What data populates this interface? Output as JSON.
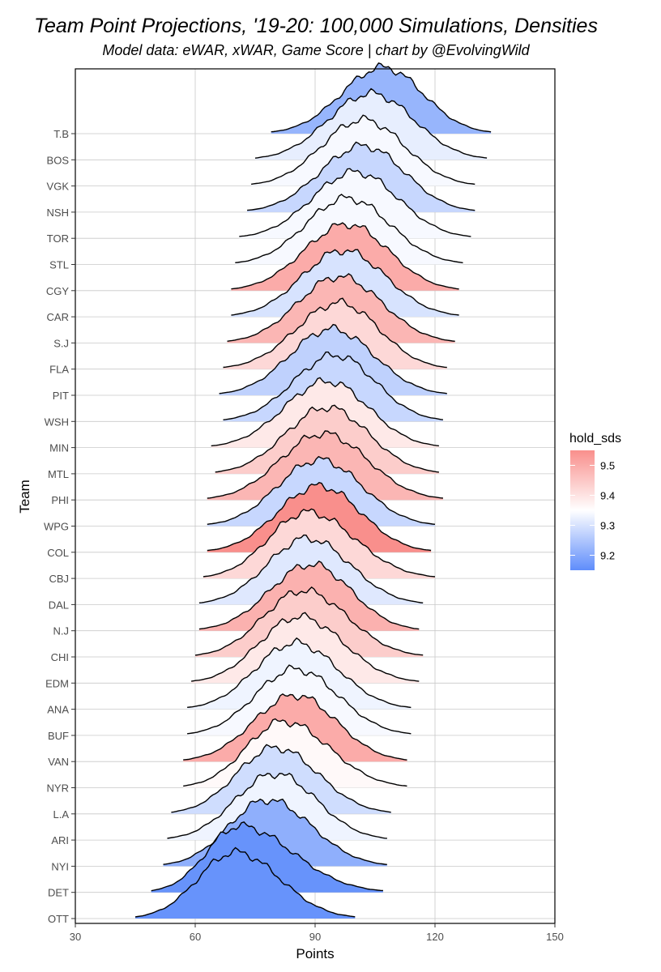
{
  "chart_data": {
    "type": "ridgeline-density",
    "title": "Team Point Projections, '19-20: 100,000 Simulations, Densities",
    "subtitle": "Model data: eWAR, xWAR, Game Score | chart by @EvolvingWild",
    "xlabel": "Points",
    "ylabel": "Team",
    "xlim": [
      30,
      150
    ],
    "xticks": [
      30,
      60,
      90,
      120,
      150
    ],
    "grid": true,
    "legend": {
      "title": "hold_sds",
      "placement": "right",
      "range": [
        9.15,
        9.55
      ],
      "ticks": [
        9.5,
        9.4,
        9.3,
        9.2
      ],
      "colors": {
        "low": "#5f8dfb",
        "mid": "#ffffff",
        "high": "#f98f8c"
      },
      "midpoint": 9.35
    },
    "series": [
      {
        "team": "T.B",
        "peak": 107,
        "min": 79,
        "max": 134,
        "hold_sds": 9.22
      },
      {
        "team": "BOS",
        "peak": 104,
        "min": 75,
        "max": 133,
        "hold_sds": 9.32
      },
      {
        "team": "VGK",
        "peak": 102,
        "min": 74,
        "max": 130,
        "hold_sds": 9.34
      },
      {
        "team": "NSH",
        "peak": 102,
        "min": 73,
        "max": 130,
        "hold_sds": 9.28
      },
      {
        "team": "TOR",
        "peak": 100,
        "min": 71,
        "max": 129,
        "hold_sds": 9.34
      },
      {
        "team": "STL",
        "peak": 98,
        "min": 70,
        "max": 127,
        "hold_sds": 9.34
      },
      {
        "team": "CGY",
        "peak": 98,
        "min": 69,
        "max": 126,
        "hold_sds": 9.5
      },
      {
        "team": "CAR",
        "peak": 97,
        "min": 69,
        "max": 126,
        "hold_sds": 9.3
      },
      {
        "team": "S.J",
        "peak": 96,
        "min": 68,
        "max": 125,
        "hold_sds": 9.48
      },
      {
        "team": "FLA",
        "peak": 96,
        "min": 67,
        "max": 123,
        "hold_sds": 9.42
      },
      {
        "team": "PIT",
        "peak": 94,
        "min": 66,
        "max": 123,
        "hold_sds": 9.27
      },
      {
        "team": "WSH",
        "peak": 95,
        "min": 67,
        "max": 122,
        "hold_sds": 9.28
      },
      {
        "team": "MIN",
        "peak": 93,
        "min": 64,
        "max": 121,
        "hold_sds": 9.39
      },
      {
        "team": "MTL",
        "peak": 93,
        "min": 65,
        "max": 121,
        "hold_sds": 9.44
      },
      {
        "team": "PHI",
        "peak": 92,
        "min": 63,
        "max": 122,
        "hold_sds": 9.48
      },
      {
        "team": "WPG",
        "peak": 91,
        "min": 63,
        "max": 120,
        "hold_sds": 9.28
      },
      {
        "team": "COL",
        "peak": 91,
        "min": 63,
        "max": 119,
        "hold_sds": 9.55
      },
      {
        "team": "CBJ",
        "peak": 88,
        "min": 62,
        "max": 120,
        "hold_sds": 9.42
      },
      {
        "team": "DAL",
        "peak": 88,
        "min": 61,
        "max": 117,
        "hold_sds": 9.31
      },
      {
        "team": "N.J",
        "peak": 89,
        "min": 61,
        "max": 116,
        "hold_sds": 9.49
      },
      {
        "team": "CHI",
        "peak": 87,
        "min": 60,
        "max": 117,
        "hold_sds": 9.44
      },
      {
        "team": "EDM",
        "peak": 86,
        "min": 59,
        "max": 116,
        "hold_sds": 9.39
      },
      {
        "team": "ANA",
        "peak": 85,
        "min": 58,
        "max": 114,
        "hold_sds": 9.33
      },
      {
        "team": "BUF",
        "peak": 85,
        "min": 58,
        "max": 114,
        "hold_sds": 9.34
      },
      {
        "team": "VAN",
        "peak": 85,
        "min": 57,
        "max": 113,
        "hold_sds": 9.5
      },
      {
        "team": "NYR",
        "peak": 82,
        "min": 57,
        "max": 113,
        "hold_sds": 9.36
      },
      {
        "team": "L.A",
        "peak": 80,
        "min": 54,
        "max": 109,
        "hold_sds": 9.29
      },
      {
        "team": "ARI",
        "peak": 80,
        "min": 53,
        "max": 108,
        "hold_sds": 9.33
      },
      {
        "team": "NYI",
        "peak": 78,
        "min": 52,
        "max": 108,
        "hold_sds": 9.21
      },
      {
        "team": "DET",
        "peak": 71,
        "min": 49,
        "max": 107,
        "hold_sds": 9.16
      },
      {
        "team": "OTT",
        "peak": 70,
        "min": 45,
        "max": 100,
        "hold_sds": 9.16
      }
    ]
  }
}
